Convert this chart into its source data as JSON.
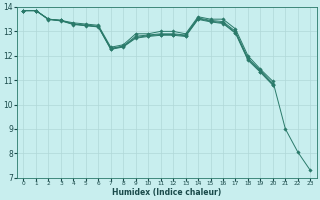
{
  "xlabel": "Humidex (Indice chaleur)",
  "ylabel": "",
  "background_color": "#c8eeee",
  "grid_color": "#b0d8d8",
  "line_color": "#2a7a6a",
  "xlim": [
    -0.5,
    23.5
  ],
  "ylim": [
    7,
    14
  ],
  "xticks": [
    0,
    1,
    2,
    3,
    4,
    5,
    6,
    7,
    8,
    9,
    10,
    11,
    12,
    13,
    14,
    15,
    16,
    17,
    18,
    19,
    20,
    21,
    22,
    23
  ],
  "yticks": [
    7,
    8,
    9,
    10,
    11,
    12,
    13,
    14
  ],
  "series": [
    {
      "x": [
        0,
        1,
        2,
        3,
        4,
        5,
        6,
        7,
        8,
        9,
        10,
        11,
        12,
        13,
        14,
        15,
        16,
        17,
        18,
        19,
        20,
        21,
        22,
        23
      ],
      "y": [
        13.85,
        13.85,
        13.5,
        13.45,
        13.35,
        13.3,
        13.25,
        12.35,
        12.45,
        12.9,
        12.9,
        13.0,
        13.0,
        12.9,
        13.6,
        13.5,
        13.5,
        13.1,
        12.0,
        11.45,
        10.95,
        9.0,
        8.05,
        7.3
      ]
    },
    {
      "x": [
        0,
        1,
        2,
        3,
        4,
        5,
        6,
        7,
        8,
        9,
        10,
        11,
        12,
        13,
        14,
        15,
        16,
        17,
        18,
        19,
        20
      ],
      "y": [
        13.85,
        13.85,
        13.5,
        13.45,
        13.3,
        13.25,
        13.2,
        12.3,
        12.4,
        12.8,
        12.85,
        12.9,
        12.9,
        12.85,
        13.55,
        13.45,
        13.4,
        13.0,
        11.9,
        11.4,
        10.85
      ]
    },
    {
      "x": [
        0,
        1,
        2,
        3,
        4,
        5,
        6,
        7,
        8,
        9,
        10,
        11,
        12,
        13,
        14,
        15,
        16,
        17,
        18,
        19,
        20
      ],
      "y": [
        13.85,
        13.85,
        13.5,
        13.45,
        13.3,
        13.25,
        13.2,
        12.28,
        12.38,
        12.75,
        12.82,
        12.87,
        12.87,
        12.82,
        13.52,
        13.42,
        13.35,
        12.95,
        11.85,
        11.35,
        10.82
      ]
    },
    {
      "x": [
        0,
        1,
        2,
        3,
        4,
        5,
        6,
        7,
        8,
        9,
        10,
        11,
        12,
        13,
        14,
        15,
        16,
        17,
        18,
        19,
        20
      ],
      "y": [
        13.85,
        13.85,
        13.48,
        13.43,
        13.28,
        13.23,
        13.18,
        12.26,
        12.36,
        12.72,
        12.79,
        12.84,
        12.84,
        12.79,
        13.49,
        13.39,
        13.32,
        12.92,
        11.82,
        11.32,
        10.79
      ]
    }
  ]
}
